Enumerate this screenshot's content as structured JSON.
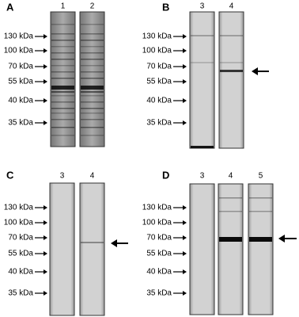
{
  "panels": [
    {
      "label": "A",
      "lanes": [
        "1",
        "2"
      ],
      "markers": [
        "130 kDa",
        "100 kDa",
        "70 kDa",
        "55 kDa",
        "40 kDa",
        "35 kDa"
      ]
    },
    {
      "label": "B",
      "lanes": [
        "3",
        "4"
      ],
      "markers": [
        "130 kDa",
        "100 kDa",
        "70 kDa",
        "55 kDa",
        "40 kDa",
        "35 kDa"
      ]
    },
    {
      "label": "C",
      "lanes": [
        "3",
        "4"
      ],
      "markers": [
        "130 kDa",
        "100 kDa",
        "70 kDa",
        "55 kDa",
        "40 kDa",
        "35 kDa"
      ]
    },
    {
      "label": "D",
      "lanes": [
        "3",
        "4",
        "5"
      ],
      "markers": [
        "130 kDa",
        "100 kDa",
        "70 kDa",
        "55 kDa",
        "40 kDa",
        "35 kDa"
      ]
    }
  ]
}
